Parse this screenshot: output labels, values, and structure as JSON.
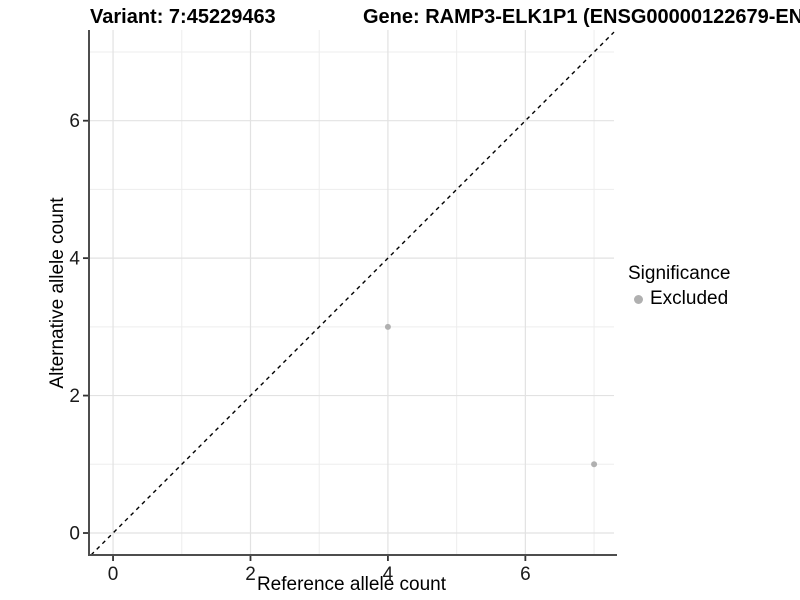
{
  "header": {
    "variant_title": "Variant: 7:45229463",
    "gene_title": "Gene: RAMP3-ELK1P1 (ENSG00000122679-EN"
  },
  "chart_data": {
    "type": "scatter",
    "title_left": "Variant: 7:45229463",
    "title_right": "Gene: RAMP3-ELK1P1 (ENSG00000122679-EN",
    "xlabel": "Reference allele count",
    "ylabel": "Alternative allele count",
    "xlim": [
      -0.35,
      7.29
    ],
    "ylim": [
      -0.32,
      7.32
    ],
    "xticks": [
      0,
      2,
      4,
      6
    ],
    "yticks": [
      0,
      2,
      4,
      6
    ],
    "x_minor": [
      1,
      3,
      5,
      7
    ],
    "y_minor": [
      1,
      3,
      5,
      7
    ],
    "grid": "on",
    "points": [
      {
        "x": 4,
        "y": 3,
        "series": "Excluded"
      },
      {
        "x": 7,
        "y": 1,
        "series": "Excluded"
      }
    ],
    "identity_line": {
      "style": "dashed",
      "slope": 1,
      "intercept": 0,
      "color": "#000000"
    },
    "colors": {
      "point": "#b0b0b0",
      "grid_major": "#e2e2e2",
      "grid_minor": "#ededed",
      "axis_line": "#4d4d4d",
      "tick_mark": "#333333",
      "tick_label": "#1a1a1a"
    },
    "legend": {
      "position": "right",
      "title": "Significance",
      "items": [
        {
          "label": "Excluded",
          "color": "#b0b0b0"
        }
      ]
    }
  }
}
